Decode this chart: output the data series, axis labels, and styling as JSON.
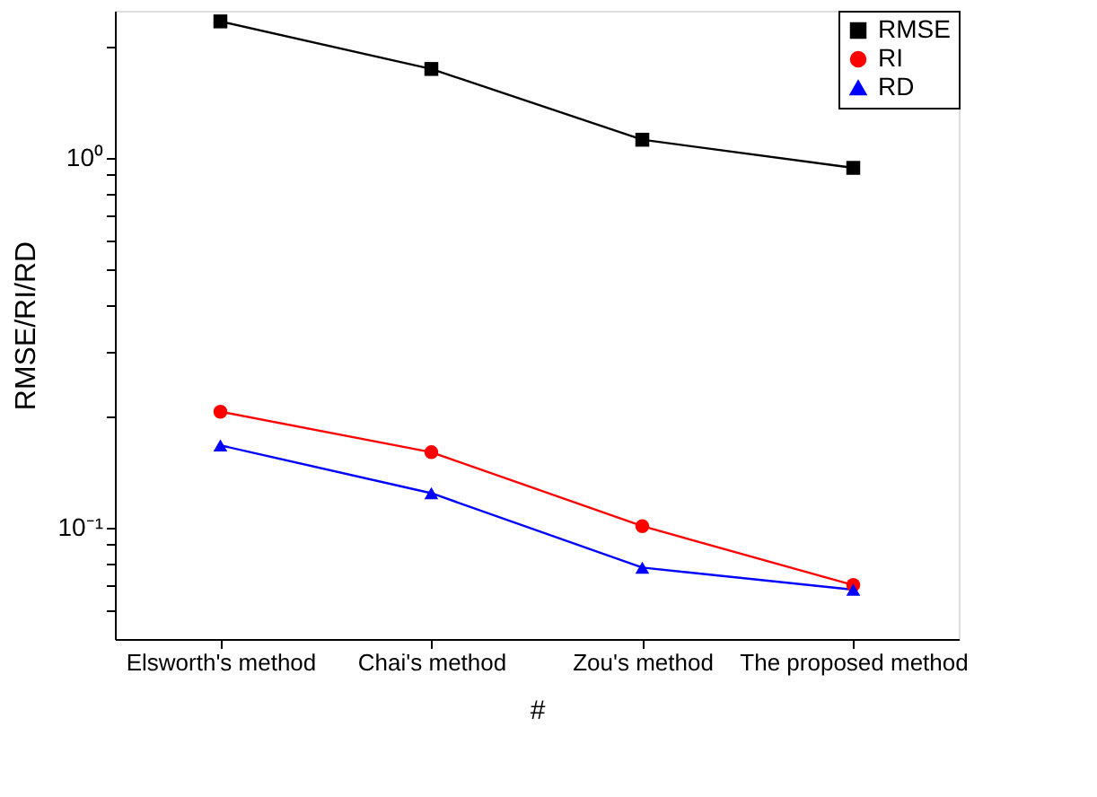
{
  "chart_data": {
    "type": "line",
    "xlabel": "#",
    "ylabel": "RMSE/RI/RD",
    "categories": [
      "Elsworth's method",
      "Chai's method",
      "Zou's method",
      "The proposed method"
    ],
    "series": [
      {
        "name": "RMSE",
        "color": "#000000",
        "marker": "square",
        "values": [
          2.34,
          1.74,
          1.12,
          0.94
        ]
      },
      {
        "name": "RI",
        "color": "#ff0000",
        "marker": "circle",
        "values": [
          0.206,
          0.16,
          0.101,
          0.07
        ]
      },
      {
        "name": "RD",
        "color": "#0000ff",
        "marker": "triangle",
        "values": [
          0.167,
          0.124,
          0.078,
          0.068
        ]
      }
    ],
    "log": true,
    "ylim": [
      0.05,
      2.5
    ],
    "yticks": [
      {
        "value": 0.06,
        "label": null
      },
      {
        "value": 0.07,
        "label": null
      },
      {
        "value": 0.08,
        "label": null
      },
      {
        "value": 0.09,
        "label": null
      },
      {
        "value": 0.1,
        "label": "10⁻¹"
      },
      {
        "value": 0.2,
        "label": null
      },
      {
        "value": 0.3,
        "label": null
      },
      {
        "value": 0.4,
        "label": null
      },
      {
        "value": 0.5,
        "label": null
      },
      {
        "value": 0.6,
        "label": null
      },
      {
        "value": 0.7,
        "label": null
      },
      {
        "value": 0.8,
        "label": null
      },
      {
        "value": 0.9,
        "label": null
      },
      {
        "value": 1,
        "label": "10⁰"
      },
      {
        "value": 2,
        "label": null
      }
    ],
    "grid": false,
    "legend": "top right",
    "line_style": "solid"
  }
}
